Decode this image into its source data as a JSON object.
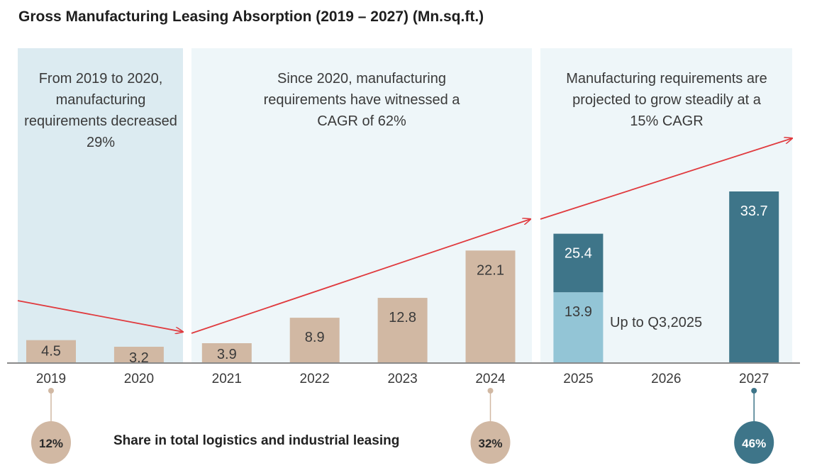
{
  "chart_data": {
    "type": "bar",
    "title": "Gross Manufacturing Leasing Absorption (2019 – 2027) (Mn.sq.ft.)",
    "categories": [
      "2019",
      "2020",
      "2021",
      "2022",
      "2023",
      "2024",
      "2025",
      "2026",
      "2027"
    ],
    "series": [
      {
        "values": [
          4.5,
          3.2,
          3.9,
          8.9,
          12.8,
          22.1,
          null,
          null,
          null
        ],
        "color": "#d1b8a3"
      },
      {
        "name": "Up to Q3,2025",
        "values": [
          null,
          null,
          null,
          null,
          null,
          null,
          13.9,
          null,
          null
        ],
        "color": "#93c5d6"
      },
      {
        "values": [
          null,
          null,
          null,
          null,
          null,
          null,
          25.4,
          null,
          33.7
        ],
        "color": "#3e7589"
      }
    ],
    "annotations": [
      "From 2019 to 2020, manufacturing requirements decreased 29%",
      "Since 2020, manufacturing requirements have witnessed a CAGR of 62%",
      "Manufacturing requirements are projected to grow steadily at a 15% CAGR"
    ],
    "share_label": "Share in total logistics and industrial leasing",
    "shares": [
      {
        "year": "2019",
        "value": "12%",
        "color": "#d1b8a3"
      },
      {
        "year": "2024",
        "value": "32%",
        "color": "#d1b8a3"
      },
      {
        "year": "2027",
        "value": "46%",
        "color": "#3e7589"
      }
    ],
    "ylim": [
      0,
      35
    ],
    "grid": false
  }
}
